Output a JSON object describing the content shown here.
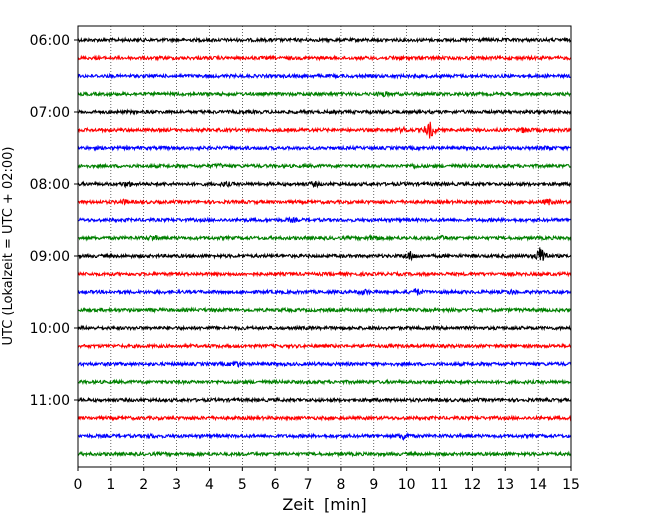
{
  "chart_data": {
    "type": "line",
    "title": "",
    "xlabel": "Zeit  [min]",
    "ylabel": "UTC (Lokalzeit = UTC + 02:00)",
    "xlim": [
      0,
      15
    ],
    "x_ticks": [
      "0",
      "1",
      "2",
      "3",
      "4",
      "5",
      "6",
      "7",
      "8",
      "9",
      "10",
      "11",
      "12",
      "13",
      "14",
      "15"
    ],
    "y_ticks": [
      "06:00",
      "07:00",
      "08:00",
      "09:00",
      "10:00",
      "11:00"
    ],
    "grid": "vertical dotted",
    "colors": [
      "#000000",
      "#ff0000",
      "#0000ff",
      "#008000"
    ],
    "series": [
      {
        "trace_start": "06:00",
        "color": "#000000",
        "events": []
      },
      {
        "trace_start": "06:15",
        "color": "#ff0000",
        "events": [
          {
            "x": 9.7,
            "amp": 1.3
          }
        ]
      },
      {
        "trace_start": "06:30",
        "color": "#0000ff",
        "events": []
      },
      {
        "trace_start": "06:45",
        "color": "#008000",
        "events": [
          {
            "x": 9.3,
            "amp": 1.5
          }
        ]
      },
      {
        "trace_start": "07:00",
        "color": "#000000",
        "events": []
      },
      {
        "trace_start": "07:15",
        "color": "#ff0000",
        "events": [
          {
            "x": 9.9,
            "amp": 1.4
          },
          {
            "x": 10.7,
            "amp": 3.0
          },
          {
            "x": 13.6,
            "amp": 1.6
          }
        ]
      },
      {
        "trace_start": "07:30",
        "color": "#0000ff",
        "events": [
          {
            "x": 14.3,
            "amp": 1.4
          }
        ]
      },
      {
        "trace_start": "07:45",
        "color": "#008000",
        "events": [
          {
            "x": 4.3,
            "amp": 1.3
          },
          {
            "x": 10.2,
            "amp": 1.3
          }
        ]
      },
      {
        "trace_start": "08:00",
        "color": "#000000",
        "events": [
          {
            "x": 1.5,
            "amp": 1.5
          },
          {
            "x": 4.5,
            "amp": 1.4
          },
          {
            "x": 7.2,
            "amp": 1.4
          }
        ]
      },
      {
        "trace_start": "08:15",
        "color": "#ff0000",
        "events": [
          {
            "x": 1.4,
            "amp": 1.4
          },
          {
            "x": 14.3,
            "amp": 1.6
          }
        ]
      },
      {
        "trace_start": "08:30",
        "color": "#0000ff",
        "events": [
          {
            "x": 6.5,
            "amp": 1.3
          }
        ]
      },
      {
        "trace_start": "08:45",
        "color": "#008000",
        "events": [
          {
            "x": 2.3,
            "amp": 1.5
          },
          {
            "x": 9.0,
            "amp": 1.6
          },
          {
            "x": 11.1,
            "amp": 1.3
          }
        ]
      },
      {
        "trace_start": "09:00",
        "color": "#000000",
        "events": [
          {
            "x": 10.1,
            "amp": 2.0
          },
          {
            "x": 14.1,
            "amp": 3.5
          }
        ]
      },
      {
        "trace_start": "09:15",
        "color": "#ff0000",
        "events": []
      },
      {
        "trace_start": "09:30",
        "color": "#0000ff",
        "events": [
          {
            "x": 8.7,
            "amp": 1.5
          },
          {
            "x": 10.3,
            "amp": 1.7
          },
          {
            "x": 13.2,
            "amp": 1.4
          }
        ]
      },
      {
        "trace_start": "09:45",
        "color": "#008000",
        "events": []
      },
      {
        "trace_start": "10:00",
        "color": "#000000",
        "events": []
      },
      {
        "trace_start": "10:15",
        "color": "#ff0000",
        "events": []
      },
      {
        "trace_start": "10:30",
        "color": "#0000ff",
        "events": [
          {
            "x": 4.8,
            "amp": 1.6
          }
        ]
      },
      {
        "trace_start": "10:45",
        "color": "#008000",
        "events": []
      },
      {
        "trace_start": "11:00",
        "color": "#000000",
        "events": []
      },
      {
        "trace_start": "11:15",
        "color": "#ff0000",
        "events": []
      },
      {
        "trace_start": "11:30",
        "color": "#0000ff",
        "events": [
          {
            "x": 2.2,
            "amp": 1.3
          },
          {
            "x": 9.9,
            "amp": 1.8
          }
        ]
      },
      {
        "trace_start": "11:45",
        "color": "#008000",
        "events": []
      }
    ]
  }
}
